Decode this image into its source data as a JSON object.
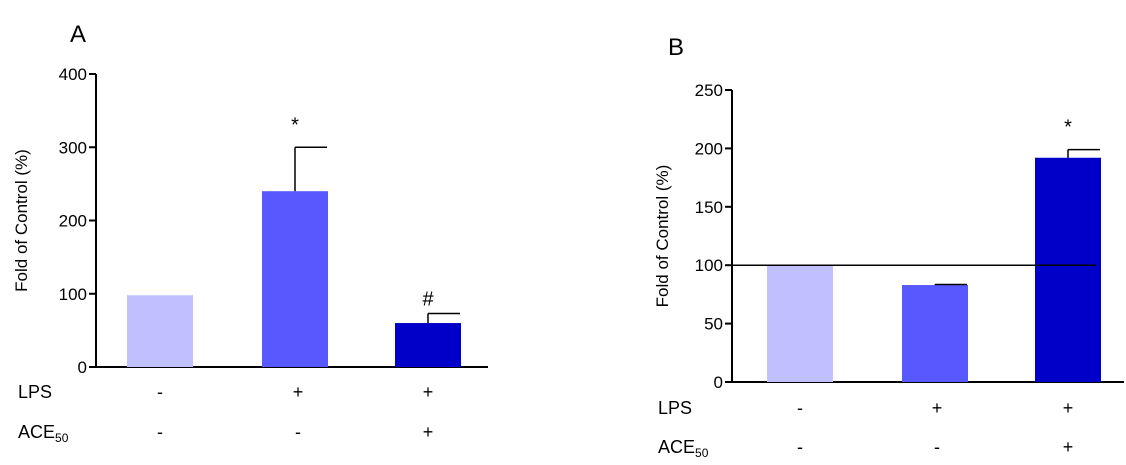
{
  "chart_data": [
    {
      "panel_label": "A",
      "type": "bar",
      "ylabel": "Fold of Control (%)",
      "ylim": [
        0,
        400
      ],
      "yticks": [
        0,
        100,
        200,
        300,
        400
      ],
      "bars": [
        {
          "value": 98,
          "error": 0,
          "annotation": "",
          "color": "#c0c0ff"
        },
        {
          "value": 240,
          "error": 60,
          "annotation": "*",
          "color": "#5858ff"
        },
        {
          "value": 60,
          "error": 13,
          "annotation": "#",
          "color": "#0000c8"
        }
      ],
      "conditions": [
        {
          "label": "LPS",
          "signs": [
            "-",
            "+",
            "+"
          ]
        },
        {
          "label": "ACE",
          "label_sub": "50",
          "signs": [
            "-",
            "-",
            "+"
          ]
        }
      ]
    },
    {
      "panel_label": "B",
      "type": "bar",
      "ylabel": "Fold of Control (%)",
      "ylim": [
        0,
        250
      ],
      "yticks": [
        0,
        50,
        100,
        150,
        200,
        250
      ],
      "reference_line": 100,
      "bars": [
        {
          "value": 100,
          "error": 0,
          "annotation": "",
          "color": "#c0c0ff"
        },
        {
          "value": 83,
          "error": 0.5,
          "annotation": "",
          "color": "#5858ff"
        },
        {
          "value": 192,
          "error": 7,
          "annotation": "*",
          "color": "#0000c8"
        }
      ],
      "conditions": [
        {
          "label": "LPS",
          "signs": [
            "-",
            "+",
            "+"
          ]
        },
        {
          "label": "ACE",
          "label_sub": "50",
          "signs": [
            "-",
            "-",
            "+"
          ]
        }
      ]
    }
  ]
}
